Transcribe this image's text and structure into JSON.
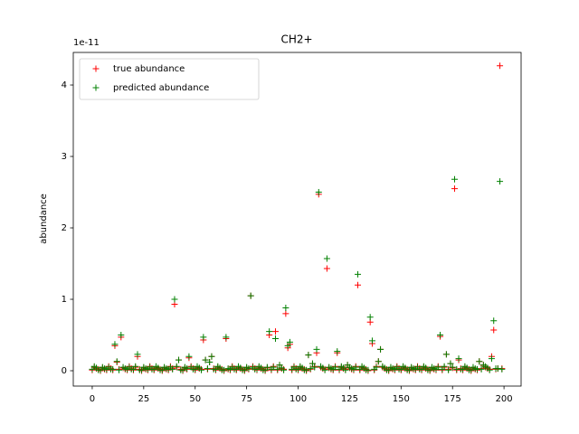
{
  "chart_data": {
    "type": "scatter",
    "title": "CH2+",
    "y_label": "abundance",
    "y_offset_text": "1e-11",
    "x": [
      0,
      1,
      2,
      3,
      4,
      5,
      6,
      7,
      8,
      9,
      10,
      11,
      12,
      13,
      14,
      15,
      16,
      17,
      18,
      19,
      20,
      21,
      22,
      23,
      24,
      25,
      26,
      27,
      28,
      29,
      30,
      31,
      32,
      33,
      34,
      35,
      36,
      37,
      38,
      39,
      40,
      41,
      42,
      43,
      44,
      45,
      46,
      47,
      48,
      49,
      50,
      51,
      52,
      53,
      54,
      55,
      56,
      57,
      58,
      59,
      60,
      61,
      62,
      63,
      64,
      65,
      66,
      67,
      68,
      69,
      70,
      71,
      72,
      73,
      74,
      75,
      76,
      77,
      78,
      79,
      80,
      81,
      82,
      83,
      84,
      85,
      86,
      87,
      88,
      89,
      90,
      91,
      92,
      93,
      94,
      95,
      96,
      97,
      98,
      99,
      100,
      101,
      102,
      103,
      104,
      105,
      106,
      107,
      108,
      109,
      110,
      111,
      112,
      113,
      114,
      115,
      116,
      117,
      118,
      119,
      120,
      121,
      122,
      123,
      124,
      125,
      126,
      127,
      128,
      129,
      130,
      131,
      132,
      133,
      134,
      135,
      136,
      137,
      138,
      139,
      140,
      141,
      142,
      143,
      144,
      145,
      146,
      147,
      148,
      149,
      150,
      151,
      152,
      153,
      154,
      155,
      156,
      157,
      158,
      159,
      160,
      161,
      162,
      163,
      164,
      165,
      166,
      167,
      168,
      169,
      170,
      171,
      172,
      173,
      174,
      175,
      176,
      177,
      178,
      179,
      180,
      181,
      182,
      183,
      184,
      185,
      186,
      187,
      188,
      189,
      190,
      191,
      192,
      193,
      194,
      195,
      196,
      197,
      198,
      199
    ],
    "series": [
      {
        "name": "true abundance",
        "color": "#ff0000",
        "marker": "+",
        "values": [
          0.01,
          0.05,
          0.03,
          0.02,
          0.0,
          0.04,
          0.02,
          0.01,
          0.06,
          0.03,
          0.01,
          0.35,
          0.12,
          0.02,
          0.47,
          0.04,
          0.02,
          0.01,
          0.06,
          0.03,
          0.01,
          0.05,
          0.2,
          0.02,
          0.0,
          0.04,
          0.02,
          0.01,
          0.06,
          0.03,
          0.01,
          0.05,
          0.03,
          0.02,
          0.0,
          0.04,
          0.02,
          0.01,
          0.06,
          0.03,
          0.93,
          0.05,
          0.15,
          0.02,
          0.0,
          0.04,
          0.02,
          0.18,
          0.06,
          0.03,
          0.01,
          0.05,
          0.03,
          0.02,
          0.43,
          0.15,
          0.02,
          0.12,
          0.2,
          0.03,
          0.01,
          0.05,
          0.03,
          0.02,
          0.0,
          0.45,
          0.02,
          0.01,
          0.06,
          0.03,
          0.01,
          0.05,
          0.03,
          0.02,
          0.0,
          0.04,
          0.02,
          1.05,
          0.06,
          0.03,
          0.01,
          0.05,
          0.03,
          0.02,
          0.0,
          0.04,
          0.5,
          0.01,
          0.06,
          0.55,
          0.01,
          0.08,
          0.03,
          0.02,
          0.8,
          0.32,
          0.37,
          0.01,
          0.06,
          0.03,
          0.01,
          0.05,
          0.03,
          0.02,
          0.0,
          0.22,
          0.02,
          0.1,
          0.06,
          0.25,
          2.47,
          0.05,
          0.03,
          0.02,
          1.43,
          0.04,
          0.02,
          0.01,
          0.06,
          0.25,
          0.01,
          0.05,
          0.03,
          0.02,
          0.08,
          0.04,
          0.02,
          0.01,
          0.06,
          1.2,
          0.01,
          0.05,
          0.03,
          0.02,
          0.0,
          0.68,
          0.38,
          0.01,
          0.06,
          0.13,
          0.3,
          0.05,
          0.03,
          0.02,
          0.0,
          0.04,
          0.02,
          0.01,
          0.06,
          0.03,
          0.01,
          0.05,
          0.03,
          0.02,
          0.0,
          0.04,
          0.02,
          0.01,
          0.06,
          0.03,
          0.01,
          0.05,
          0.03,
          0.02,
          0.0,
          0.04,
          0.02,
          0.01,
          0.06,
          0.48,
          0.01,
          0.05,
          0.23,
          0.02,
          0.1,
          0.04,
          2.55,
          0.01,
          0.15,
          0.03,
          0.01,
          0.05,
          0.03,
          0.02,
          0.0,
          0.04,
          0.02,
          0.01,
          0.13,
          0.03,
          0.08,
          0.05,
          0.03,
          0.02,
          0.2,
          0.57,
          0.02,
          0.03,
          4.27,
          0.03
        ]
      },
      {
        "name": "predicted abundance",
        "color": "#008000",
        "marker": "+",
        "values": [
          0.02,
          0.06,
          0.04,
          0.01,
          0.01,
          0.05,
          0.03,
          0.02,
          0.05,
          0.02,
          0.02,
          0.37,
          0.13,
          0.01,
          0.5,
          0.05,
          0.03,
          0.02,
          0.05,
          0.02,
          0.02,
          0.06,
          0.23,
          0.01,
          0.01,
          0.05,
          0.03,
          0.02,
          0.05,
          0.02,
          0.02,
          0.06,
          0.04,
          0.01,
          0.01,
          0.05,
          0.03,
          0.02,
          0.05,
          0.02,
          1.0,
          0.06,
          0.15,
          0.01,
          0.01,
          0.05,
          0.03,
          0.2,
          0.05,
          0.02,
          0.02,
          0.06,
          0.04,
          0.01,
          0.47,
          0.15,
          0.03,
          0.12,
          0.2,
          0.02,
          0.02,
          0.06,
          0.04,
          0.01,
          0.01,
          0.47,
          0.03,
          0.02,
          0.05,
          0.02,
          0.02,
          0.06,
          0.04,
          0.01,
          0.01,
          0.05,
          0.03,
          1.05,
          0.05,
          0.02,
          0.02,
          0.06,
          0.04,
          0.01,
          0.01,
          0.05,
          0.55,
          0.02,
          0.05,
          0.45,
          0.02,
          0.08,
          0.04,
          0.01,
          0.88,
          0.35,
          0.4,
          0.02,
          0.05,
          0.02,
          0.02,
          0.06,
          0.04,
          0.01,
          0.01,
          0.22,
          0.03,
          0.1,
          0.05,
          0.3,
          2.5,
          0.06,
          0.04,
          0.01,
          1.57,
          0.05,
          0.03,
          0.02,
          0.05,
          0.27,
          0.02,
          0.06,
          0.04,
          0.01,
          0.08,
          0.05,
          0.03,
          0.02,
          0.05,
          1.35,
          0.02,
          0.06,
          0.04,
          0.01,
          0.01,
          0.75,
          0.42,
          0.02,
          0.05,
          0.13,
          0.3,
          0.06,
          0.04,
          0.01,
          0.01,
          0.05,
          0.03,
          0.02,
          0.05,
          0.02,
          0.02,
          0.06,
          0.04,
          0.01,
          0.01,
          0.05,
          0.03,
          0.02,
          0.05,
          0.02,
          0.02,
          0.06,
          0.04,
          0.01,
          0.01,
          0.05,
          0.03,
          0.02,
          0.05,
          0.5,
          0.02,
          0.06,
          0.23,
          0.01,
          0.1,
          0.05,
          2.68,
          0.02,
          0.17,
          0.02,
          0.02,
          0.06,
          0.04,
          0.01,
          0.01,
          0.05,
          0.03,
          0.02,
          0.13,
          0.02,
          0.08,
          0.06,
          0.04,
          0.01,
          0.17,
          0.7,
          0.03,
          0.03,
          2.65,
          0.02
        ]
      }
    ],
    "xlim": [
      -9.2,
      208.3
    ],
    "xticks": [
      0,
      25,
      50,
      75,
      100,
      125,
      150,
      175,
      200
    ],
    "ylim": [
      -0.215,
      4.456
    ],
    "yticks": [
      0,
      1,
      2,
      3,
      4
    ],
    "grid": false,
    "legend": "upper left"
  }
}
